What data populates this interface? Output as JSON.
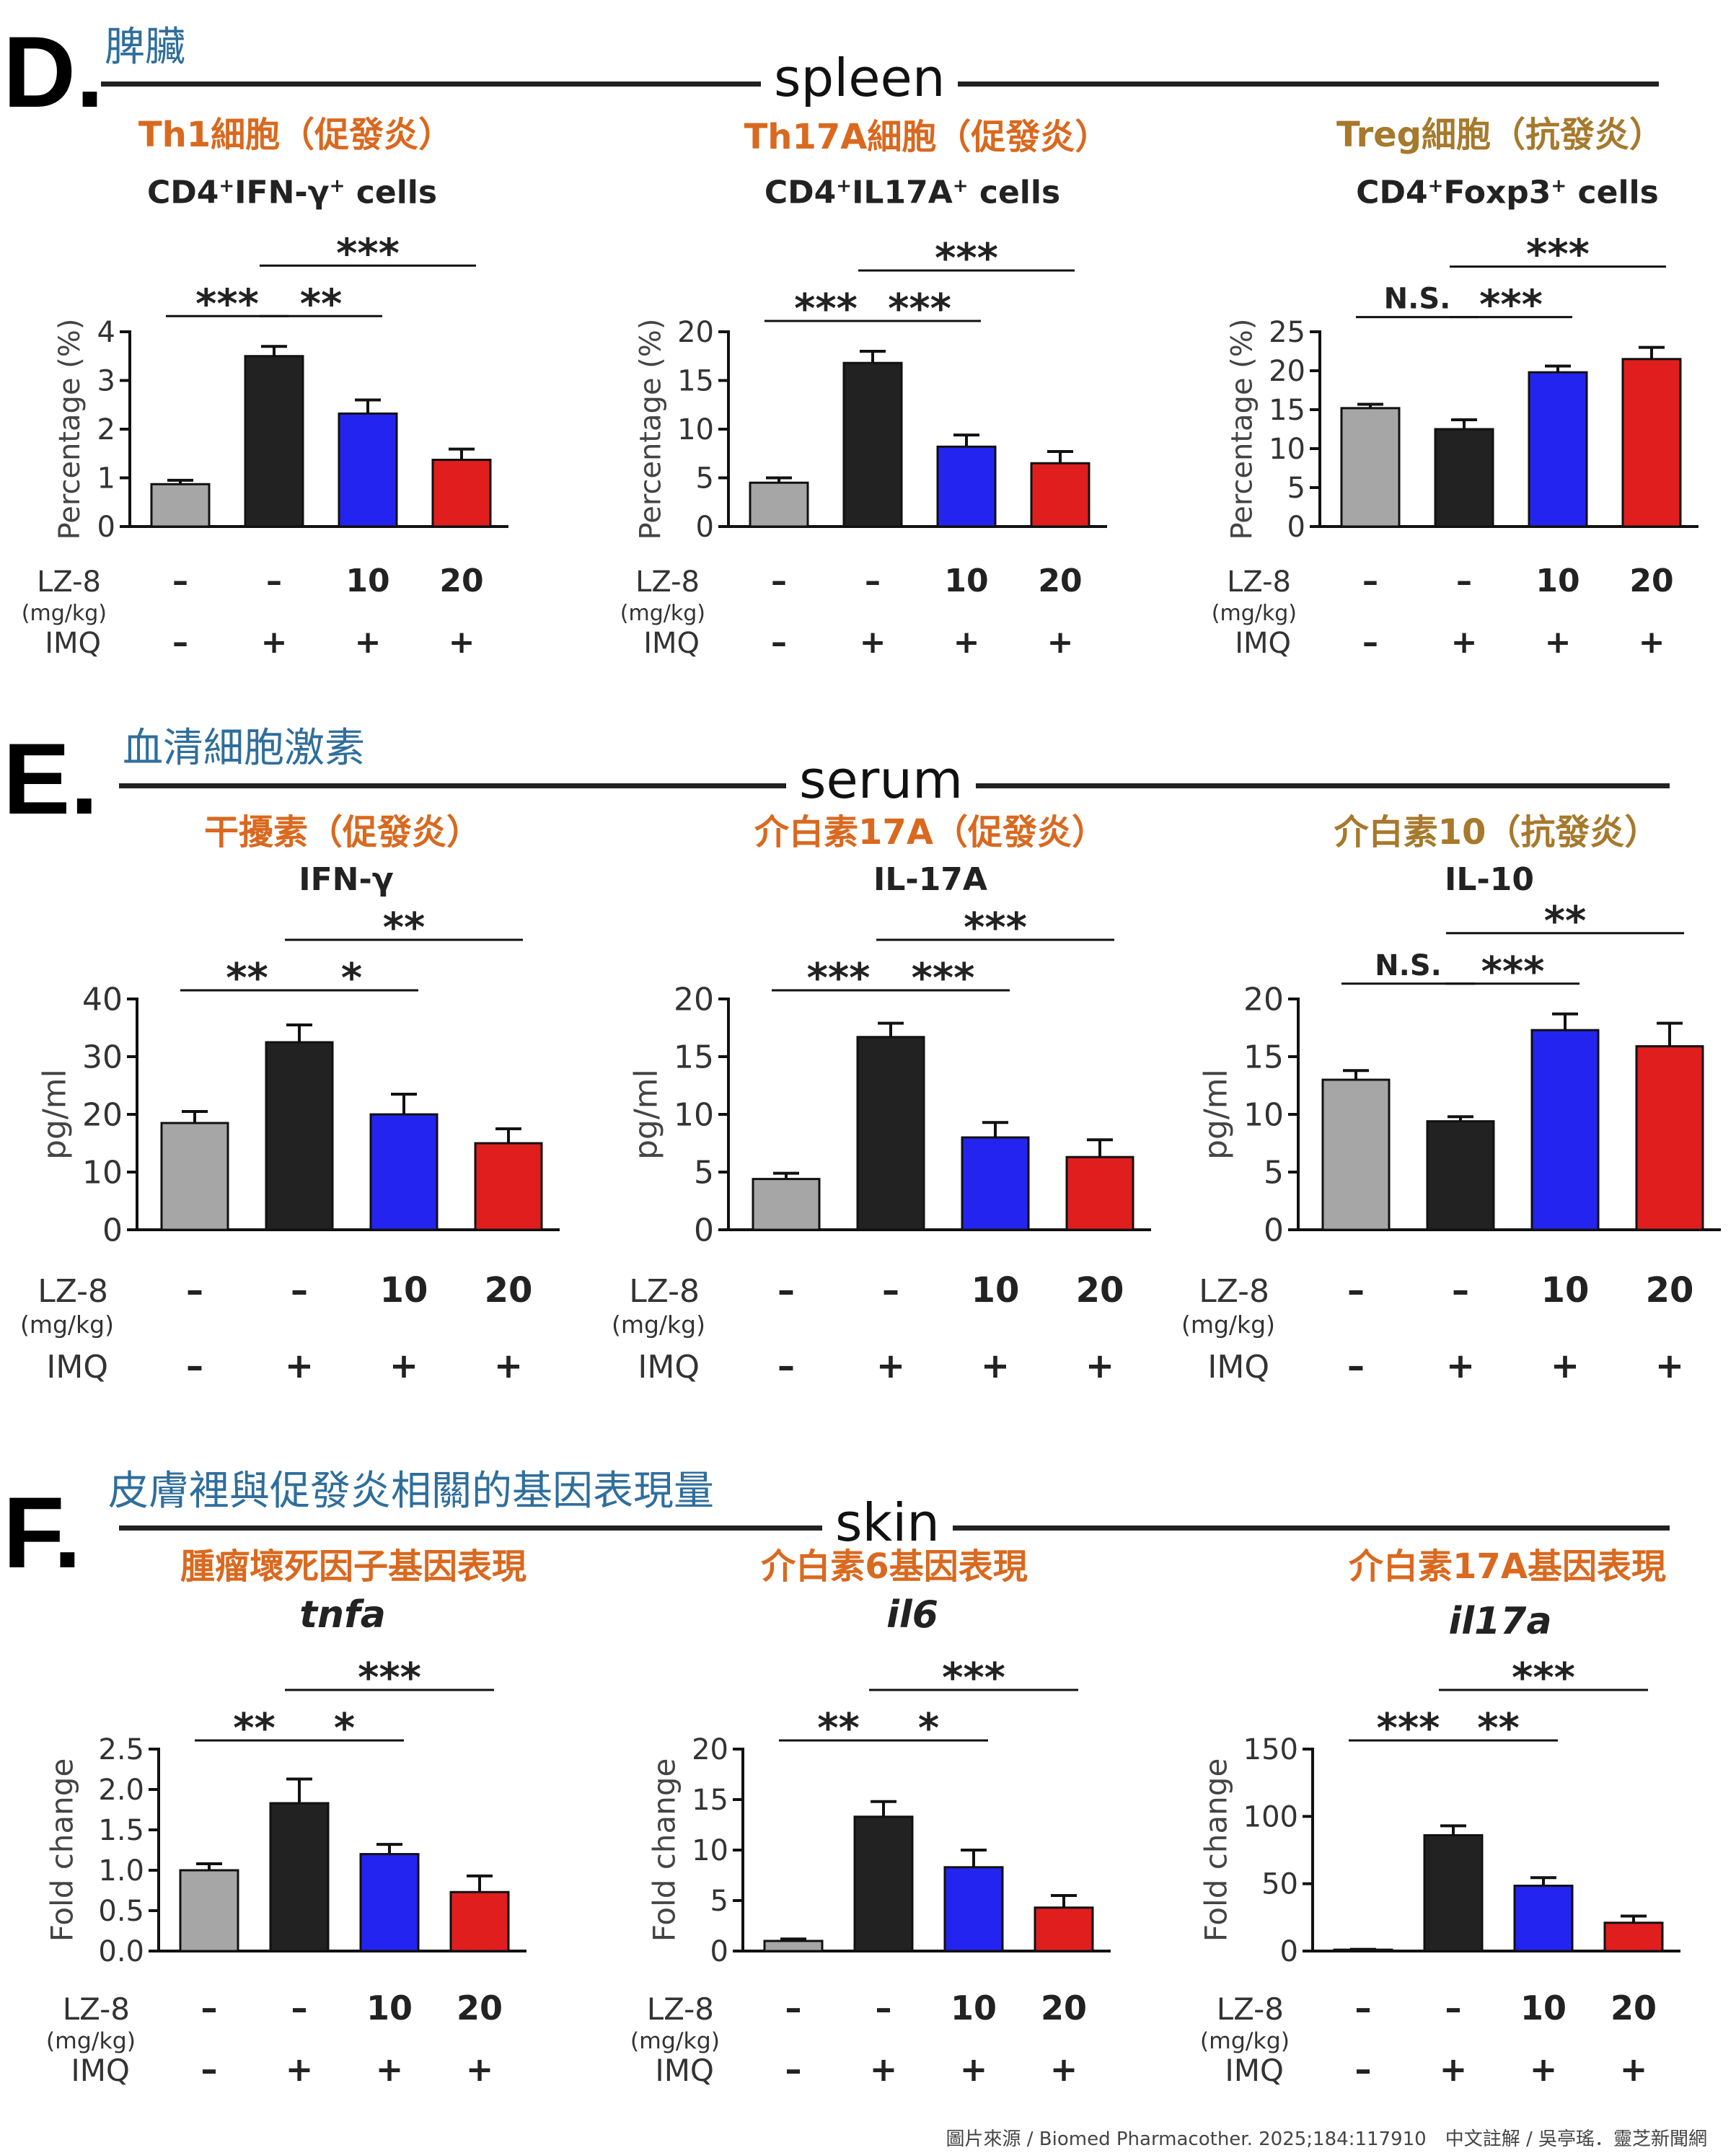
{
  "colors": {
    "gray": "#a6a6a6",
    "black": "#222222",
    "blue": "#2424f0",
    "red": "#e01e1e",
    "section_blue": "#2f6e9c",
    "pro_orange": "#d9691f",
    "anti_gold": "#a6792c"
  },
  "sections": [
    {
      "letter": "D.",
      "cn": "脾臟",
      "tissue": "spleen"
    },
    {
      "letter": "E.",
      "cn": "血清細胞激素",
      "tissue": "serum"
    },
    {
      "letter": "F.",
      "cn": "皮膚裡與促發炎相關的基因表現量",
      "tissue": "skin"
    }
  ],
  "row_labels": {
    "lz8": "LZ-8",
    "lz8_unit": "(mg/kg)",
    "imq": "IMQ",
    "lz8_values": [
      "–",
      "–",
      "10",
      "20"
    ],
    "imq_values": [
      "–",
      "+",
      "+",
      "+"
    ]
  },
  "footer": "圖片來源 / Biomed Pharmacother. 2025;184:117910　中文註解 / 吳亭瑤．靈芝新聞網",
  "chart_data": [
    {
      "type": "bar",
      "section": "D",
      "cn_title": "Th1細胞（促發炎）",
      "cn_kind": "pro",
      "title_main": "CD4",
      "title_sup1": "+",
      "title_mid": "IFN-γ",
      "title_sup2": "+",
      "title_end": " cells",
      "ylabel": "Percentage (%)",
      "ylim": [
        0,
        4
      ],
      "yticks": [
        0,
        1,
        2,
        3,
        4
      ],
      "values": [
        0.87,
        3.5,
        2.32,
        1.37
      ],
      "errors": [
        0.08,
        0.2,
        0.28,
        0.22
      ],
      "sig": [
        {
          "from": 0,
          "to": 1,
          "label": "***",
          "level": 0
        },
        {
          "from": 1,
          "to": 2,
          "label": "**",
          "level": 0
        },
        {
          "from": 1,
          "to": 3,
          "label": "***",
          "level": 1
        }
      ]
    },
    {
      "type": "bar",
      "section": "D",
      "cn_title": "Th17A細胞（促發炎）",
      "cn_kind": "pro",
      "title_main": "CD4",
      "title_sup1": "+",
      "title_mid": "IL17A",
      "title_sup2": "+",
      "title_end": " cells",
      "ylabel": "Percentage (%)",
      "ylim": [
        0,
        20
      ],
      "yticks": [
        0,
        5,
        10,
        15,
        20
      ],
      "values": [
        4.5,
        16.8,
        8.2,
        6.5
      ],
      "errors": [
        0.5,
        1.2,
        1.2,
        1.2
      ],
      "sig": [
        {
          "from": 0,
          "to": 1,
          "label": "***",
          "level": 0
        },
        {
          "from": 1,
          "to": 2,
          "label": "***",
          "level": 0
        },
        {
          "from": 1,
          "to": 3,
          "label": "***",
          "level": 1
        }
      ]
    },
    {
      "type": "bar",
      "section": "D",
      "cn_title": "Treg細胞（抗發炎）",
      "cn_kind": "anti",
      "title_main": "CD4",
      "title_sup1": "+",
      "title_mid": "Foxp3",
      "title_sup2": "+",
      "title_end": " cells",
      "ylabel": "Percentage (%)",
      "ylim": [
        0,
        25
      ],
      "yticks": [
        0,
        5,
        10,
        15,
        20,
        25
      ],
      "values": [
        15.2,
        12.5,
        19.8,
        21.5
      ],
      "errors": [
        0.5,
        1.2,
        0.8,
        1.5
      ],
      "sig": [
        {
          "from": 0,
          "to": 1,
          "label": "N.S.",
          "level": 0
        },
        {
          "from": 1,
          "to": 2,
          "label": "***",
          "level": 0
        },
        {
          "from": 1,
          "to": 3,
          "label": "***",
          "level": 1
        }
      ]
    },
    {
      "type": "bar",
      "section": "E",
      "cn_title": "干擾素（促發炎）",
      "cn_kind": "pro",
      "title_main": "IFN-γ",
      "ylabel": "pg/ml",
      "ylim": [
        0,
        40
      ],
      "yticks": [
        0,
        10,
        20,
        30,
        40
      ],
      "values": [
        18.5,
        32.5,
        20.0,
        15.0
      ],
      "errors": [
        2.0,
        3.0,
        3.5,
        2.5
      ],
      "sig": [
        {
          "from": 0,
          "to": 1,
          "label": "**",
          "level": 0
        },
        {
          "from": 1,
          "to": 2,
          "label": "*",
          "level": 0
        },
        {
          "from": 1,
          "to": 3,
          "label": "**",
          "level": 1
        }
      ]
    },
    {
      "type": "bar",
      "section": "E",
      "cn_title": "介白素17A（促發炎）",
      "cn_kind": "pro",
      "title_main": "IL-17A",
      "ylabel": "pg/ml",
      "ylim": [
        0,
        20
      ],
      "yticks": [
        0,
        5,
        10,
        15,
        20
      ],
      "values": [
        4.4,
        16.7,
        8.0,
        6.3
      ],
      "errors": [
        0.5,
        1.2,
        1.3,
        1.5
      ],
      "sig": [
        {
          "from": 0,
          "to": 1,
          "label": "***",
          "level": 0
        },
        {
          "from": 1,
          "to": 2,
          "label": "***",
          "level": 0
        },
        {
          "from": 1,
          "to": 3,
          "label": "***",
          "level": 1
        }
      ]
    },
    {
      "type": "bar",
      "section": "E",
      "cn_title": "介白素10（抗發炎）",
      "cn_kind": "anti",
      "title_main": "IL-10",
      "ylabel": "pg/ml",
      "ylim": [
        0,
        20
      ],
      "yticks": [
        0,
        5,
        10,
        15,
        20
      ],
      "values": [
        13.0,
        9.4,
        17.3,
        15.9
      ],
      "errors": [
        0.8,
        0.4,
        1.4,
        2.0
      ],
      "sig": [
        {
          "from": 0,
          "to": 1,
          "label": "N.S.",
          "level": 0
        },
        {
          "from": 1,
          "to": 2,
          "label": "***",
          "level": 0
        },
        {
          "from": 1,
          "to": 3,
          "label": "**",
          "level": 1
        }
      ]
    },
    {
      "type": "bar",
      "section": "F",
      "cn_title": "腫瘤壞死因子基因表現",
      "cn_kind": "pro",
      "title_main": "tnfa",
      "italic": true,
      "ylabel": "Fold change",
      "ylim": [
        0,
        2.5
      ],
      "yticks": [
        "0.0",
        "0.5",
        "1.0",
        "1.5",
        "2.0",
        "2.5"
      ],
      "values": [
        1.0,
        1.83,
        1.2,
        0.73
      ],
      "errors": [
        0.08,
        0.3,
        0.12,
        0.2
      ],
      "sig": [
        {
          "from": 0,
          "to": 1,
          "label": "**",
          "level": 0
        },
        {
          "from": 1,
          "to": 2,
          "label": "*",
          "level": 0
        },
        {
          "from": 1,
          "to": 3,
          "label": "***",
          "level": 1
        }
      ]
    },
    {
      "type": "bar",
      "section": "F",
      "cn_title": "介白素6基因表現",
      "cn_kind": "pro",
      "title_main": "il6",
      "italic": true,
      "ylabel": "Fold change",
      "ylim": [
        0,
        20
      ],
      "yticks": [
        0,
        5,
        10,
        15,
        20
      ],
      "values": [
        1.0,
        13.3,
        8.3,
        4.3
      ],
      "errors": [
        0.2,
        1.5,
        1.7,
        1.2
      ],
      "sig": [
        {
          "from": 0,
          "to": 1,
          "label": "**",
          "level": 0
        },
        {
          "from": 1,
          "to": 2,
          "label": "*",
          "level": 0
        },
        {
          "from": 1,
          "to": 3,
          "label": "***",
          "level": 1
        }
      ]
    },
    {
      "type": "bar",
      "section": "F",
      "cn_title": "介白素17A基因表現",
      "cn_kind": "pro",
      "title_main": "il17a",
      "italic": true,
      "ylabel": "Fold change",
      "ylim": [
        0,
        150
      ],
      "yticks": [
        0,
        50,
        100,
        150
      ],
      "values": [
        1.0,
        86.0,
        48.5,
        21.0
      ],
      "errors": [
        0.3,
        7.0,
        6.0,
        5.0
      ],
      "sig": [
        {
          "from": 0,
          "to": 1,
          "label": "***",
          "level": 0
        },
        {
          "from": 1,
          "to": 2,
          "label": "**",
          "level": 0
        },
        {
          "from": 1,
          "to": 3,
          "label": "***",
          "level": 1
        }
      ]
    }
  ]
}
